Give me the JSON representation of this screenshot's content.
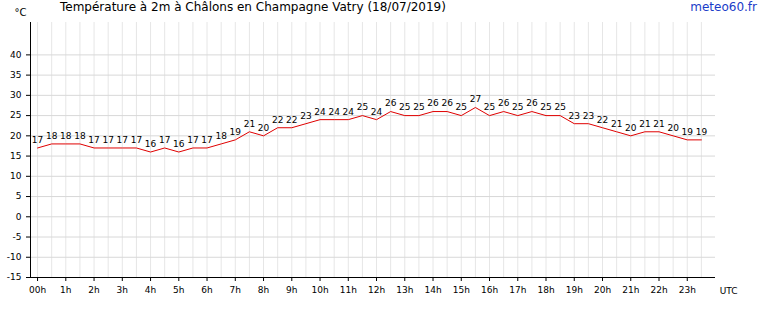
{
  "chart_data": {
    "type": "line",
    "title": "Température à 2m à Châlons en Champagne Vatry (18/07/2019)",
    "source": "meteo60.fr",
    "x_label": "UTC",
    "y_label": "°C",
    "x": [
      0,
      0.5,
      1,
      1.5,
      2,
      2.5,
      3,
      3.5,
      4,
      4.5,
      5,
      5.5,
      6,
      6.5,
      7,
      7.5,
      8,
      8.5,
      9,
      9.5,
      10,
      10.5,
      11,
      11.5,
      12,
      12.5,
      13,
      13.5,
      14,
      14.5,
      15,
      15.5,
      16,
      16.5,
      17,
      17.5,
      18,
      18.5,
      19,
      19.5,
      20,
      20.5,
      21,
      21.5,
      22,
      22.5,
      23,
      23.5
    ],
    "values": [
      17,
      18,
      18,
      18,
      17,
      17,
      17,
      17,
      16,
      17,
      16,
      17,
      17,
      18,
      19,
      21,
      20,
      22,
      22,
      23,
      24,
      24,
      24,
      25,
      24,
      26,
      25,
      25,
      26,
      26,
      25,
      27,
      25,
      26,
      25,
      26,
      25,
      25,
      23,
      23,
      22,
      21,
      20,
      21,
      21,
      20,
      19,
      19
    ],
    "color": "#e00000",
    "xlim": [
      -0.25,
      24
    ],
    "xticks": [
      {
        "value": 0,
        "label": "00h"
      },
      {
        "value": 1,
        "label": "1h"
      },
      {
        "value": 2,
        "label": "2h"
      },
      {
        "value": 3,
        "label": "3h"
      },
      {
        "value": 4,
        "label": "4h"
      },
      {
        "value": 5,
        "label": "5h"
      },
      {
        "value": 6,
        "label": "6h"
      },
      {
        "value": 7,
        "label": "7h"
      },
      {
        "value": 8,
        "label": "8h"
      },
      {
        "value": 9,
        "label": "9h"
      },
      {
        "value": 10,
        "label": "10h"
      },
      {
        "value": 11,
        "label": "11h"
      },
      {
        "value": 12,
        "label": "12h"
      },
      {
        "value": 13,
        "label": "13h"
      },
      {
        "value": 14,
        "label": "14h"
      },
      {
        "value": 15,
        "label": "15h"
      },
      {
        "value": 16,
        "label": "16h"
      },
      {
        "value": 17,
        "label": "17h"
      },
      {
        "value": 18,
        "label": "18h"
      },
      {
        "value": 19,
        "label": "19h"
      },
      {
        "value": 20,
        "label": "20h"
      },
      {
        "value": 21,
        "label": "21h"
      },
      {
        "value": 22,
        "label": "22h"
      },
      {
        "value": 23,
        "label": "23h"
      }
    ],
    "ylim": [
      -15,
      48
    ],
    "yticks": [
      -15,
      -10,
      -5,
      0,
      5,
      10,
      15,
      20,
      25,
      30,
      35,
      40
    ],
    "grid": true,
    "data_labels": true
  }
}
